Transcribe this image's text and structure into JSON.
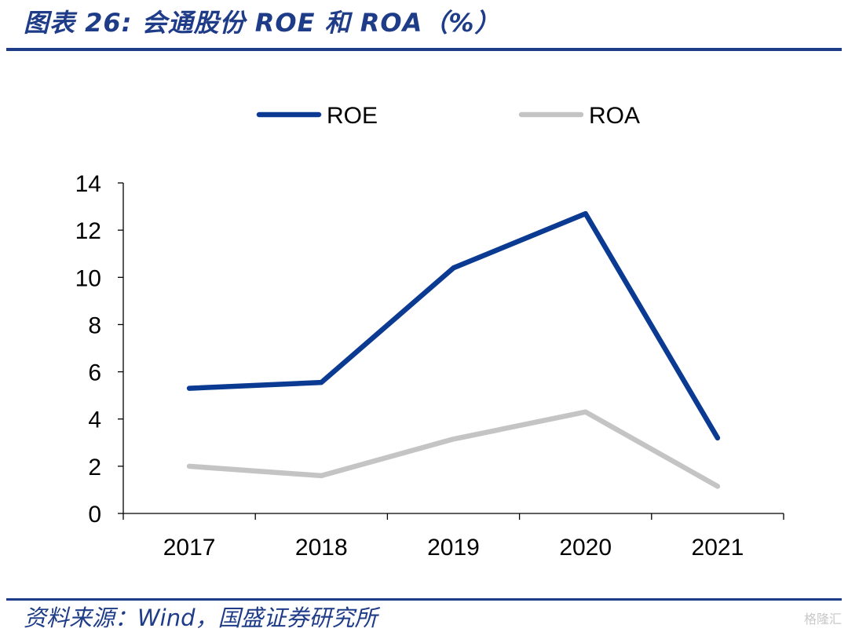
{
  "title": "图表 26:  会通股份 ROE 和 ROA（%）",
  "source": "资料来源：Wind，国盛证券研究所",
  "watermark": "格隆汇",
  "colors": {
    "accent": "#1f3c88",
    "roe": "#0a3a91",
    "roa": "#c4c4c4",
    "axis": "#000000"
  },
  "chart_data": {
    "type": "line",
    "categories": [
      "2017",
      "2018",
      "2019",
      "2020",
      "2021"
    ],
    "series": [
      {
        "name": "ROE",
        "values": [
          5.3,
          5.55,
          10.4,
          12.7,
          3.2
        ]
      },
      {
        "name": "ROA",
        "values": [
          2.0,
          1.6,
          3.15,
          4.3,
          1.15
        ]
      }
    ],
    "ylim": [
      0,
      14
    ],
    "yticks": [
      0,
      2,
      4,
      6,
      8,
      10,
      12,
      14
    ],
    "xlabel": "",
    "ylabel": "",
    "grid": false,
    "legend": "top-center"
  }
}
